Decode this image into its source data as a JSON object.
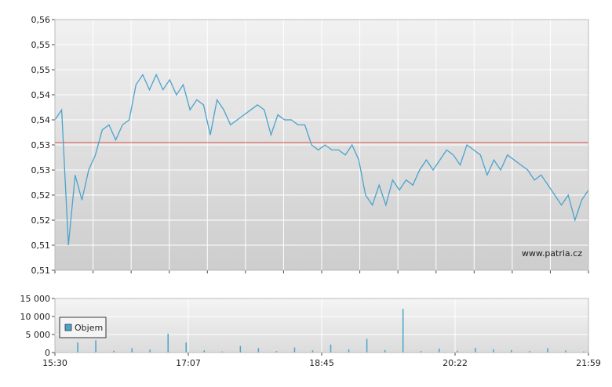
{
  "watermark": "www.patria.cz",
  "chart_data": [
    {
      "type": "line",
      "title": "",
      "ylim": [
        0.51,
        0.56
      ],
      "y_tick_labels": [
        "0,56",
        "0,55",
        "0,55",
        "0,54",
        "0,54",
        "0,53",
        "0,53",
        "0,52",
        "0,52",
        "0,51",
        "0,51"
      ],
      "reference_line": 0.5355,
      "colors": {
        "line": "#4aa3cc",
        "reference": "#e06060",
        "grid": "#ffffff"
      },
      "x_tick_labels": [
        "15:30",
        "17:07",
        "18:45",
        "20:22",
        "21:59"
      ],
      "series": [
        {
          "values": [
            0.54,
            0.542,
            0.515,
            0.529,
            0.524,
            0.53,
            0.533,
            0.538,
            0.539,
            0.536,
            0.539,
            0.54,
            0.547,
            0.549,
            0.546,
            0.549,
            0.546,
            0.548,
            0.545,
            0.547,
            0.542,
            0.544,
            0.543,
            0.537,
            0.544,
            0.542,
            0.539,
            0.54,
            0.541,
            0.542,
            0.543,
            0.542,
            0.537,
            0.541,
            0.54,
            0.54,
            0.539,
            0.539,
            0.535,
            0.534,
            0.535,
            0.534,
            0.534,
            0.533,
            0.535,
            0.532,
            0.525,
            0.523,
            0.527,
            0.523,
            0.528,
            0.526,
            0.528,
            0.527,
            0.53,
            0.532,
            0.53,
            0.532,
            0.534,
            0.533,
            0.531,
            0.535,
            0.534,
            0.533,
            0.529,
            0.532,
            0.53,
            0.533,
            0.532,
            0.531,
            0.53,
            0.528,
            0.529,
            0.527,
            0.525,
            0.523,
            0.525,
            0.52,
            0.524,
            0.526
          ]
        }
      ]
    },
    {
      "type": "bar",
      "title": "",
      "ylim": [
        0,
        15000
      ],
      "y_tick_labels": [
        "15 000",
        "10 000",
        "5 000",
        "0"
      ],
      "legend": "Objem",
      "colors": {
        "bar": "#4aa3cc"
      },
      "x_tick_labels": [
        "15:30",
        "17:07",
        "18:45",
        "20:22",
        "21:59"
      ],
      "series": [
        {
          "name": "Objem",
          "values": [
            0,
            2800,
            3400,
            500,
            1200,
            800,
            5200,
            2800,
            600,
            300,
            1800,
            1200,
            400,
            1400,
            600,
            2200,
            900,
            3800,
            700,
            12100,
            400,
            1100,
            500,
            1300,
            900,
            700,
            400,
            1200,
            600,
            300
          ]
        }
      ]
    }
  ]
}
